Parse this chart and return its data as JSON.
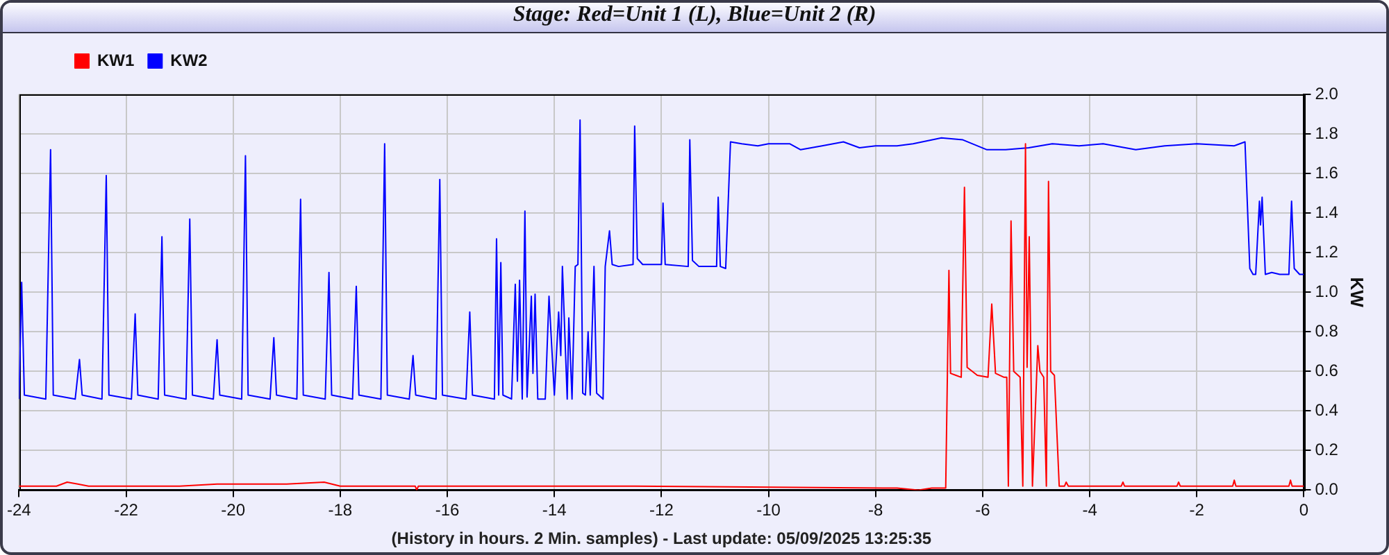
{
  "chart_data": {
    "type": "line",
    "title": "Stage: Red=Unit 1 (L), Blue=Unit 2 (R)",
    "xlabel": "(History in hours. 2 Min. samples) - Last update: 05/09/2025 13:25:35",
    "ylabel": "KW",
    "xlim": [
      -24,
      0
    ],
    "xticks": [
      -24,
      -22,
      -20,
      -18,
      -16,
      -14,
      -12,
      -10,
      -8,
      -6,
      -4,
      -2,
      0
    ],
    "ylim": [
      0,
      2
    ],
    "yticks": [
      {
        "value": 0,
        "label": "0.0"
      },
      0.2,
      0.4,
      0.6,
      0.8,
      {
        "value": 1,
        "label": "1.0"
      },
      1.2,
      1.4,
      1.6,
      1.8,
      {
        "value": 2,
        "label": "2.0"
      }
    ],
    "grid": true,
    "legend": "top left",
    "marker": "none",
    "series": [
      {
        "name": "KW1",
        "color": "#ff0000",
        "x": [
          -24,
          -23.3,
          -23.1,
          -22.9,
          -22.7,
          -21,
          -20.3,
          -19.6,
          -19,
          -18.3,
          -18,
          -16.6,
          -16.57,
          -16.54,
          -12.5,
          -7.6,
          -7.2,
          -6.95,
          -6.69,
          -6.63,
          -6.6,
          -6.5,
          -6.4,
          -6.34,
          -6.29,
          -6.1,
          -5.9,
          -5.83,
          -5.76,
          -5.6,
          -5.55,
          -5.52,
          -5.47,
          -5.42,
          -5.3,
          -5.25,
          -5.2,
          -5.17,
          -5.13,
          -5.07,
          -4.97,
          -4.93,
          -4.86,
          -4.81,
          -4.77,
          -4.73,
          -4.66,
          -4.57,
          -4.47,
          -4.44,
          -4.4,
          -3.41,
          -3.38,
          -3.35,
          -2.37,
          -2.34,
          -2.31,
          -1.33,
          -1.3,
          -1.27,
          -0.28,
          -0.25,
          -0.22,
          0
        ],
        "values": [
          0.02,
          0.02,
          0.04,
          0.03,
          0.02,
          0.02,
          0.03,
          0.03,
          0.03,
          0.04,
          0.02,
          0.02,
          0,
          0.02,
          0.02,
          0.01,
          0,
          0.01,
          0.01,
          1.11,
          0.59,
          0.58,
          0.57,
          1.53,
          0.62,
          0.58,
          0.57,
          0.94,
          0.59,
          0.57,
          0.57,
          0.02,
          1.36,
          0.6,
          0.57,
          0.02,
          1.75,
          0.62,
          1.28,
          0.02,
          0.73,
          0.6,
          0.57,
          0.02,
          1.56,
          0.6,
          0.58,
          0.02,
          0.02,
          0.04,
          0.02,
          0.02,
          0.04,
          0.02,
          0.02,
          0.04,
          0.02,
          0.02,
          0.05,
          0.02,
          0.02,
          0.05,
          0.02,
          0.02
        ]
      },
      {
        "name": "KW2",
        "color": "#0000ff",
        "x": [
          -24,
          -23.95,
          -23.9,
          -23.5,
          -23.41,
          -23.36,
          -22.95,
          -22.87,
          -22.82,
          -22.45,
          -22.37,
          -22.32,
          -21.9,
          -21.83,
          -21.78,
          -21.4,
          -21.33,
          -21.28,
          -20.88,
          -20.81,
          -20.76,
          -20.37,
          -20.3,
          -20.25,
          -19.84,
          -19.77,
          -19.72,
          -19.31,
          -19.24,
          -19.19,
          -18.81,
          -18.74,
          -18.69,
          -18.28,
          -18.21,
          -18.16,
          -17.77,
          -17.7,
          -17.65,
          -17.24,
          -17.17,
          -17.12,
          -16.71,
          -16.64,
          -16.59,
          -16.21,
          -16.14,
          -16.09,
          -15.65,
          -15.58,
          -15.53,
          -15.12,
          -15.08,
          -15.04,
          -15,
          -14.96,
          -14.8,
          -14.73,
          -14.69,
          -14.65,
          -14.6,
          -14.55,
          -14.51,
          -14.43,
          -14.4,
          -14.36,
          -14.31,
          -14.17,
          -14.1,
          -14,
          -13.92,
          -13.88,
          -13.85,
          -13.76,
          -13.73,
          -13.67,
          -13.61,
          -13.56,
          -13.52,
          -13.47,
          -13.42,
          -13.37,
          -13.33,
          -13.26,
          -13.21,
          -13.09,
          -13.05,
          -12.97,
          -12.92,
          -12.8,
          -12.53,
          -12.5,
          -12.45,
          -12.35,
          -12,
          -11.97,
          -11.93,
          -11.5,
          -11.47,
          -11.42,
          -11.3,
          -10.97,
          -10.94,
          -10.9,
          -10.8,
          -10.71,
          -10.5,
          -10.2,
          -10,
          -9.6,
          -9.4,
          -9,
          -8.6,
          -8.3,
          -8,
          -7.6,
          -7.3,
          -6.77,
          -6.37,
          -5.92,
          -5.57,
          -5.14,
          -4.7,
          -4.2,
          -3.75,
          -3.14,
          -2.6,
          -2,
          -1.3,
          -1.1,
          -1.01,
          -0.95,
          -0.9,
          -0.83,
          -0.81,
          -0.78,
          -0.72,
          -0.6,
          -0.45,
          -0.28,
          -0.23,
          -0.18,
          -0.08,
          0
        ],
        "values": [
          0.46,
          1.05,
          0.48,
          0.46,
          1.72,
          0.48,
          0.46,
          0.66,
          0.48,
          0.46,
          1.59,
          0.48,
          0.46,
          0.89,
          0.48,
          0.46,
          1.28,
          0.48,
          0.46,
          1.37,
          0.48,
          0.46,
          0.76,
          0.48,
          0.46,
          1.69,
          0.48,
          0.46,
          0.77,
          0.48,
          0.46,
          1.47,
          0.48,
          0.46,
          1.1,
          0.48,
          0.46,
          1.03,
          0.48,
          0.46,
          1.75,
          0.48,
          0.46,
          0.68,
          0.48,
          0.46,
          1.57,
          0.48,
          0.46,
          0.9,
          0.48,
          0.46,
          1.27,
          0.48,
          1.15,
          0.48,
          0.46,
          1.04,
          0.55,
          1.06,
          0.46,
          1.41,
          0.47,
          0.98,
          0.59,
          0.99,
          0.46,
          0.46,
          0.98,
          0.48,
          0.9,
          0.68,
          1.13,
          0.46,
          0.87,
          0.46,
          1.13,
          1.14,
          1.87,
          0.49,
          0.48,
          0.8,
          0.48,
          1.13,
          0.49,
          0.46,
          1.13,
          1.31,
          1.14,
          1.13,
          1.14,
          1.84,
          1.17,
          1.14,
          1.14,
          1.45,
          1.14,
          1.13,
          1.77,
          1.16,
          1.13,
          1.13,
          1.48,
          1.13,
          1.12,
          1.76,
          1.75,
          1.74,
          1.75,
          1.75,
          1.72,
          1.74,
          1.76,
          1.73,
          1.74,
          1.74,
          1.75,
          1.78,
          1.77,
          1.72,
          1.72,
          1.73,
          1.75,
          1.74,
          1.75,
          1.72,
          1.74,
          1.75,
          1.74,
          1.76,
          1.12,
          1.09,
          1.09,
          1.46,
          1.34,
          1.48,
          1.09,
          1.1,
          1.09,
          1.09,
          1.46,
          1.12,
          1.09,
          1.09
        ]
      }
    ]
  }
}
